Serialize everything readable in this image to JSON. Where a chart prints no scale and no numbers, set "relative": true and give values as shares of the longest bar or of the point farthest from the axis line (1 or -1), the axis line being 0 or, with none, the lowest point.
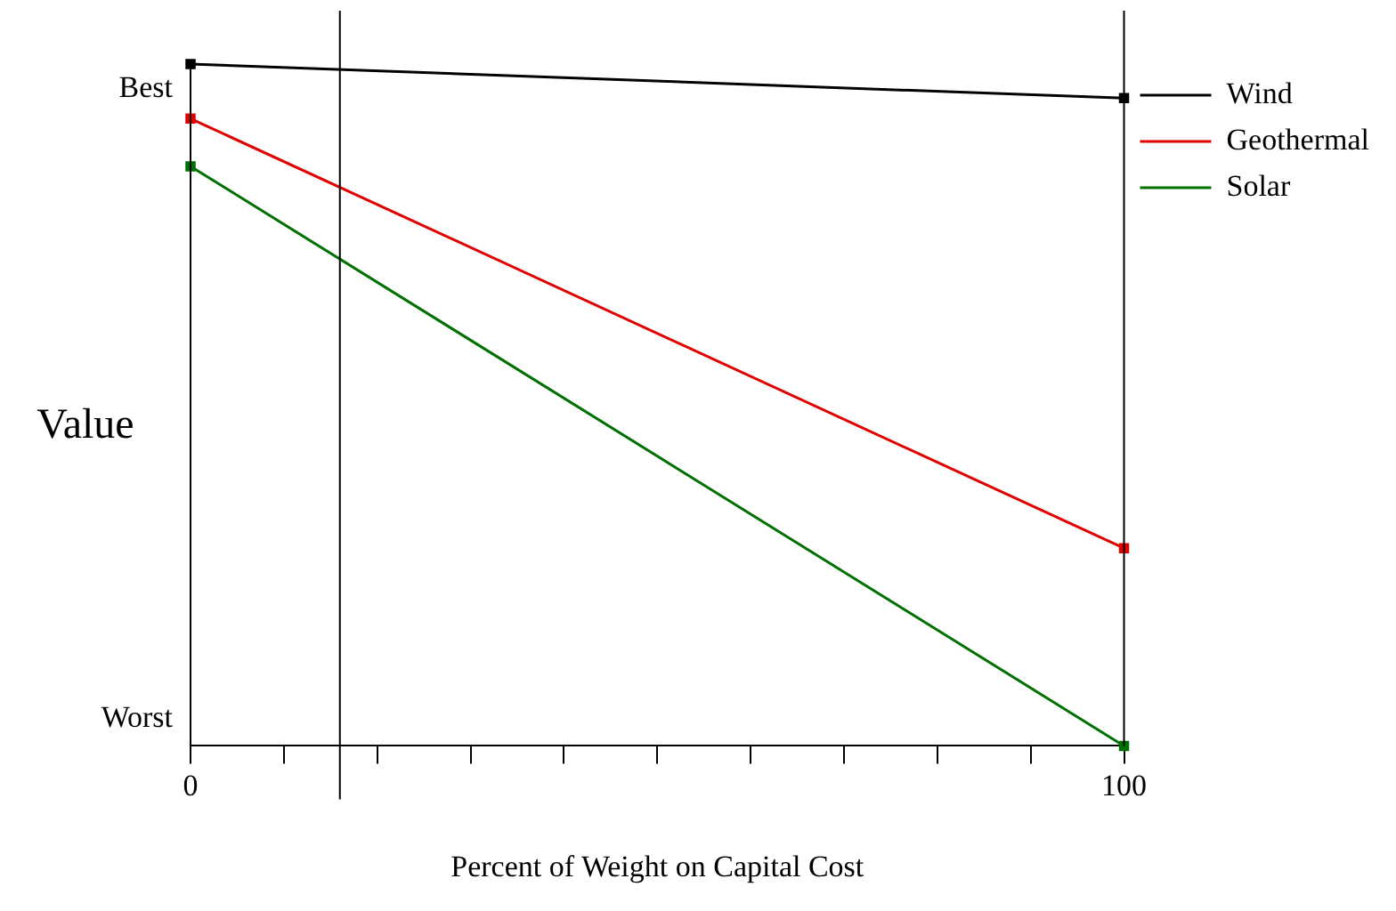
{
  "chart_data": {
    "type": "line",
    "xlabel": "Percent of Weight on Capital Cost",
    "ylabel": "Value",
    "x": [
      0,
      100
    ],
    "series": [
      {
        "name": "Wind",
        "color": "#000000",
        "values": [
          1,
          0.95
        ]
      },
      {
        "name": "Geothermal",
        "color": "#e00000",
        "values": [
          0.92,
          0.29
        ]
      },
      {
        "name": "Solar",
        "color": "#007000",
        "values": [
          0.85,
          0
        ]
      }
    ],
    "xlim": [
      0,
      100
    ],
    "xticks": [
      0,
      {
        "value": 10,
        "label": null
      },
      {
        "value": 20,
        "label": null
      },
      {
        "value": 30,
        "label": null
      },
      {
        "value": 40,
        "label": null
      },
      {
        "value": 50,
        "label": null
      },
      {
        "value": 60,
        "label": null
      },
      {
        "value": 70,
        "label": null
      },
      {
        "value": 80,
        "label": null
      },
      {
        "value": 90,
        "label": null
      },
      100
    ],
    "relative": true,
    "annotations": [
      "Best",
      "Worst"
    ],
    "ref_lines": [
      {
        "axis": "x",
        "value": 16
      },
      {
        "axis": "x",
        "value": 100
      }
    ],
    "marker": "square",
    "line_style": "solid",
    "grid": false,
    "legend": "right"
  }
}
